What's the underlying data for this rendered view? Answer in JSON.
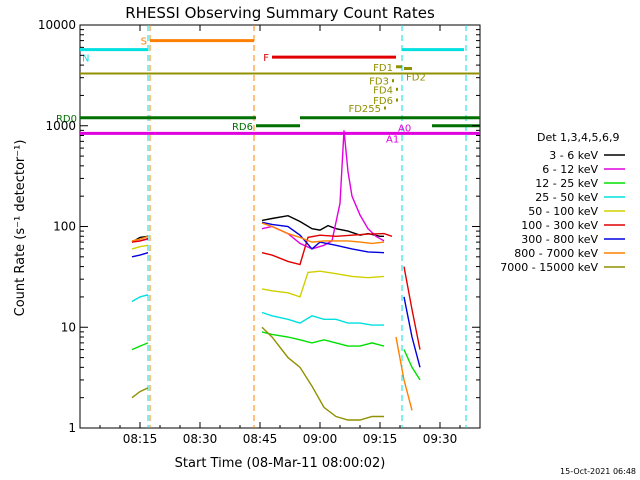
{
  "chart_data": {
    "type": "line",
    "title": "RHESSI Observing Summary Count Rates",
    "xlabel": "Start Time (08-Mar-11 08:00:02)",
    "ylabel": "Count Rate (s⁻¹ detector⁻¹)",
    "footer": "15-Oct-2021 06:48",
    "yscale": "log",
    "ylim": [
      1,
      10000
    ],
    "xlim_minutes": [
      0,
      100
    ],
    "x_ticks": [
      {
        "m": 15,
        "label": "08:15"
      },
      {
        "m": 30,
        "label": "08:30"
      },
      {
        "m": 45,
        "label": "08:45"
      },
      {
        "m": 60,
        "label": "09:00"
      },
      {
        "m": 75,
        "label": "09:15"
      },
      {
        "m": 90,
        "label": "09:30"
      }
    ],
    "y_ticks": [
      {
        "v": 1,
        "label": "1"
      },
      {
        "v": 10,
        "label": "10"
      },
      {
        "v": 100,
        "label": "100"
      },
      {
        "v": 1000,
        "label": "1000"
      },
      {
        "v": 10000,
        "label": "10000"
      }
    ],
    "legend": {
      "title": "Det 1,3,4,5,6,9",
      "position": "right"
    },
    "series": [
      {
        "name": "3 - 6 keV",
        "color": "#000000",
        "segments": [
          [
            [
              13,
              70
            ],
            [
              15,
              78
            ],
            [
              17,
              80
            ]
          ],
          [
            [
              45.5,
              115
            ],
            [
              48,
              120
            ],
            [
              52,
              128
            ],
            [
              55,
              112
            ],
            [
              58,
              95
            ],
            [
              60,
              92
            ],
            [
              62,
              102
            ],
            [
              64,
              95
            ],
            [
              67,
              90
            ],
            [
              70,
              82
            ],
            [
              72,
              85
            ],
            [
              75,
              80
            ],
            [
              76,
              80
            ]
          ]
        ]
      },
      {
        "name": "6 - 12 keV",
        "color": "#e000e0",
        "segments": [
          [
            [
              13,
              70
            ],
            [
              15,
              72
            ],
            [
              17,
              75
            ]
          ],
          [
            [
              45.5,
              95
            ],
            [
              48,
              100
            ],
            [
              52,
              85
            ],
            [
              55,
              68
            ],
            [
              58,
              60
            ],
            [
              61,
              65
            ],
            [
              63,
              72
            ],
            [
              65,
              170
            ],
            [
              66,
              900
            ],
            [
              67,
              350
            ],
            [
              68,
              200
            ],
            [
              70,
              130
            ],
            [
              72,
              95
            ],
            [
              74,
              80
            ],
            [
              76,
              72
            ]
          ]
        ]
      },
      {
        "name": "12 - 25 keV",
        "color": "#00e000",
        "segments": [
          [
            [
              13,
              6
            ],
            [
              15,
              6.5
            ],
            [
              17,
              7
            ]
          ],
          [
            [
              45.5,
              9
            ],
            [
              48,
              8.5
            ],
            [
              52,
              8
            ],
            [
              55,
              7.5
            ],
            [
              58,
              7
            ],
            [
              61,
              7.5
            ],
            [
              64,
              7
            ],
            [
              67,
              6.5
            ],
            [
              70,
              6.5
            ],
            [
              73,
              7
            ],
            [
              76,
              6.5
            ]
          ],
          [
            [
              81,
              6
            ],
            [
              83,
              4
            ],
            [
              85,
              3
            ]
          ]
        ]
      },
      {
        "name": "25 - 50 keV",
        "color": "#00e0e0",
        "segments": [
          [
            [
              13,
              18
            ],
            [
              15,
              20
            ],
            [
              17,
              21
            ]
          ],
          [
            [
              45.5,
              14
            ],
            [
              48,
              13
            ],
            [
              52,
              12
            ],
            [
              55,
              11
            ],
            [
              58,
              13
            ],
            [
              61,
              12
            ],
            [
              64,
              12
            ],
            [
              67,
              11
            ],
            [
              70,
              11
            ],
            [
              73,
              10.5
            ],
            [
              76,
              10.5
            ]
          ]
        ]
      },
      {
        "name": "50 - 100 keV",
        "color": "#d0d000",
        "segments": [
          [
            [
              13,
              60
            ],
            [
              15,
              63
            ],
            [
              17,
              65
            ]
          ],
          [
            [
              45.5,
              24
            ],
            [
              48,
              23
            ],
            [
              52,
              22
            ],
            [
              55,
              20
            ],
            [
              57,
              35
            ],
            [
              60,
              36
            ],
            [
              64,
              34
            ],
            [
              68,
              32
            ],
            [
              72,
              31
            ],
            [
              76,
              32
            ]
          ]
        ]
      },
      {
        "name": "100 - 300 keV",
        "color": "#e00000",
        "segments": [
          [
            [
              13,
              70
            ],
            [
              15,
              72
            ],
            [
              17,
              76
            ]
          ],
          [
            [
              45.5,
              55
            ],
            [
              48,
              52
            ],
            [
              52,
              45
            ],
            [
              55,
              42
            ],
            [
              57,
              78
            ],
            [
              60,
              82
            ],
            [
              64,
              80
            ],
            [
              68,
              82
            ],
            [
              72,
              84
            ],
            [
              76,
              85
            ],
            [
              78,
              80
            ]
          ],
          [
            [
              81,
              40
            ],
            [
              83,
              15
            ],
            [
              85,
              6
            ]
          ]
        ]
      },
      {
        "name": "300 - 800 keV",
        "color": "#0000e0",
        "segments": [
          [
            [
              13,
              50
            ],
            [
              15,
              52
            ],
            [
              17,
              55
            ]
          ],
          [
            [
              45.5,
              110
            ],
            [
              48,
              105
            ],
            [
              52,
              100
            ],
            [
              55,
              82
            ],
            [
              58,
              60
            ],
            [
              60,
              70
            ],
            [
              64,
              65
            ],
            [
              68,
              60
            ],
            [
              72,
              56
            ],
            [
              76,
              55
            ]
          ],
          [
            [
              81,
              20
            ],
            [
              83,
              8
            ],
            [
              85,
              4
            ]
          ]
        ]
      },
      {
        "name": "800 - 7000 keV",
        "color": "#ff8000",
        "segments": [
          [
            [
              13,
              72
            ],
            [
              15,
              75
            ],
            [
              17,
              80
            ]
          ],
          [
            [
              45.5,
              108
            ],
            [
              48,
              100
            ],
            [
              52,
              85
            ],
            [
              55,
              78
            ],
            [
              58,
              70
            ],
            [
              61,
              72
            ],
            [
              64,
              72
            ],
            [
              67,
              72
            ],
            [
              70,
              70
            ],
            [
              73,
              68
            ],
            [
              76,
              70
            ]
          ],
          [
            [
              79,
              8
            ],
            [
              81,
              3
            ],
            [
              83,
              1.5
            ]
          ]
        ]
      },
      {
        "name": "7000 - 15000 keV",
        "color": "#909000",
        "segments": [
          [
            [
              13,
              2
            ],
            [
              15,
              2.3
            ],
            [
              17,
              2.5
            ]
          ],
          [
            [
              45.5,
              10
            ],
            [
              48,
              8
            ],
            [
              52,
              5
            ],
            [
              55,
              4
            ],
            [
              58,
              2.6
            ],
            [
              61,
              1.6
            ],
            [
              64,
              1.3
            ],
            [
              67,
              1.2
            ],
            [
              70,
              1.2
            ],
            [
              73,
              1.3
            ],
            [
              76,
              1.3
            ]
          ]
        ]
      }
    ],
    "vlines": [
      {
        "m": 17,
        "color": "#00e0e0"
      },
      {
        "m": 17.5,
        "color": "#ff8000"
      },
      {
        "m": 43.5,
        "color": "#ff8000"
      },
      {
        "m": 80.5,
        "color": "#00e0e0"
      },
      {
        "m": 96.5,
        "color": "#00e0e0"
      }
    ],
    "flag_bars": [
      {
        "label": "S",
        "color": "#ff8000",
        "segments": [
          [
            17.5,
            43.5
          ]
        ],
        "y": 7000,
        "label_pos": "left"
      },
      {
        "label": "N",
        "color": "#00e0e0",
        "segments": [
          [
            0,
            17
          ],
          [
            80.5,
            96
          ]
        ],
        "y": 5700,
        "label_pos": "below"
      },
      {
        "label": "F",
        "color": "#e00000",
        "segments": [
          [
            48,
            79
          ]
        ],
        "y": 4800,
        "label_pos": "left"
      },
      {
        "label": "FD1",
        "color": "#909000",
        "segments": [
          [
            79,
            80.5
          ]
        ],
        "y": 3850,
        "label_pos": "left"
      },
      {
        "label": "FD2",
        "color": "#909000",
        "segments": [
          [
            81,
            83
          ]
        ],
        "y": 3700,
        "label_pos": "below"
      },
      {
        "label": "FD3",
        "color": "#909000",
        "segments": [
          [
            78,
            78.5
          ]
        ],
        "y": 2800,
        "label_pos": "left"
      },
      {
        "label": "FD4",
        "color": "#909000",
        "segments": [
          [
            79,
            79.5
          ]
        ],
        "y": 2300,
        "label_pos": "left"
      },
      {
        "label": "FD6",
        "color": "#909000",
        "segments": [
          [
            79,
            79.5
          ]
        ],
        "y": 1800,
        "label_pos": "left"
      },
      {
        "label": "FD255",
        "color": "#909000",
        "segments": [
          [
            76,
            76.5
          ]
        ],
        "y": 1500,
        "label_pos": "left"
      },
      {
        "label": "RD0",
        "color": "#007000",
        "segments": [
          [
            0,
            9.5
          ],
          [
            9.5,
            44
          ],
          [
            55,
            88
          ],
          [
            88,
            100
          ]
        ],
        "y": 1200,
        "label_pos": "left"
      },
      {
        "label": "RD6",
        "color": "#007000",
        "segments": [
          [
            44,
            55
          ],
          [
            88,
            100
          ]
        ],
        "y": 1000,
        "label_pos": "left"
      },
      {
        "label": "A0",
        "color": "#e000e0",
        "segments": [
          [
            0,
            100
          ]
        ],
        "y": 840,
        "label_pos": "none"
      },
      {
        "label": "A1",
        "color": "#e000e0",
        "segments": [],
        "y": 720,
        "label_pos": "none"
      }
    ],
    "olive_level": 3300
  }
}
